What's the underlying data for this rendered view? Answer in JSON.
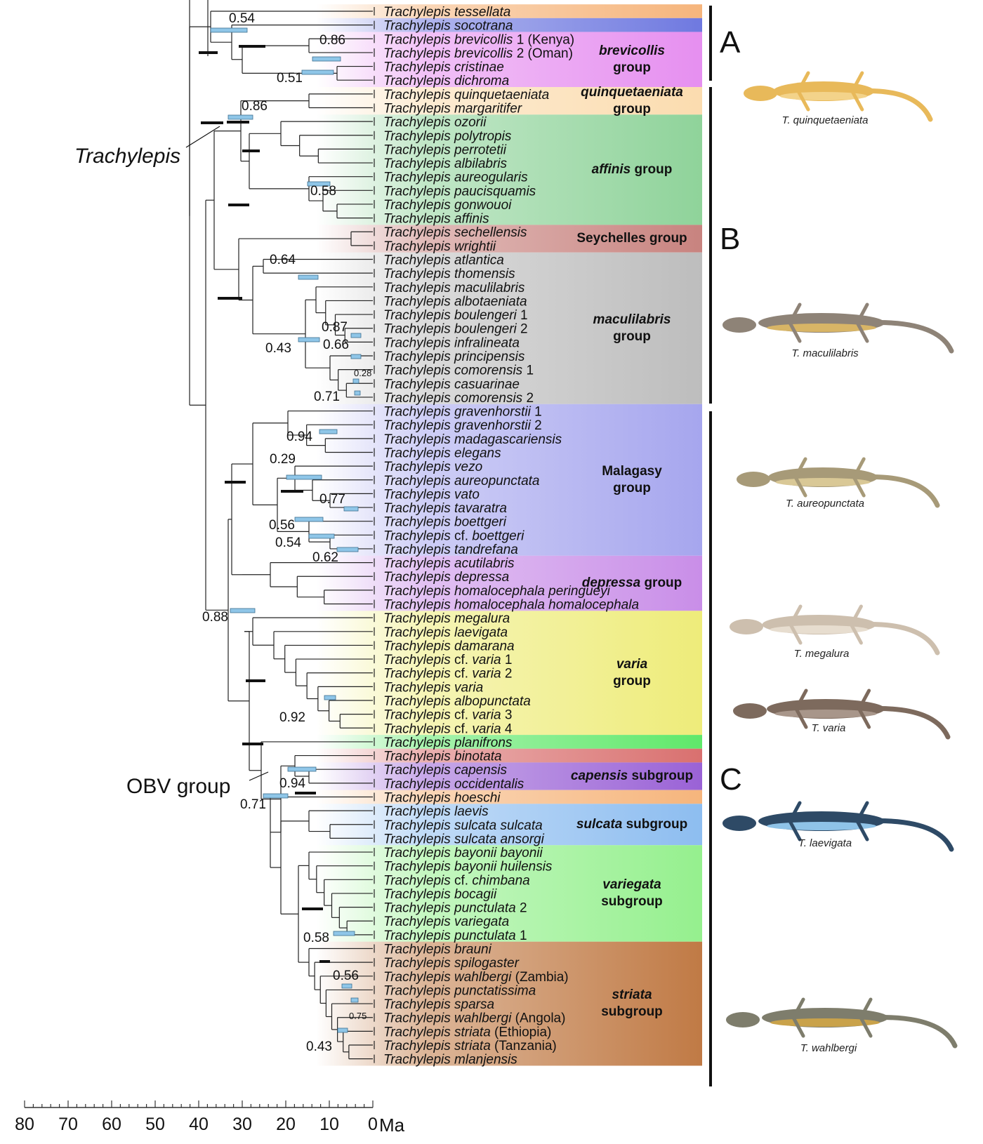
{
  "genus": "Trachylepis",
  "axis": {
    "ticks": [
      80,
      70,
      60,
      50,
      40,
      30,
      20,
      10,
      0
    ],
    "unit": "Ma"
  },
  "labels": {
    "trachylepis": "Trachylepis",
    "obv": "OBV group"
  },
  "clade_letters": [
    "A",
    "B",
    "C"
  ],
  "taxa": [
    {
      "ep": "tessellata",
      "extra": ""
    },
    {
      "ep": "socotrana",
      "extra": ""
    },
    {
      "ep": "brevicollis",
      "extra": "1 (Kenya)"
    },
    {
      "ep": "brevicollis",
      "extra": "2 (Oman)"
    },
    {
      "ep": "cristinae",
      "extra": ""
    },
    {
      "ep": "dichroma",
      "extra": ""
    },
    {
      "ep": "quinquetaeniata",
      "extra": ""
    },
    {
      "ep": "margaritifer",
      "extra": ""
    },
    {
      "ep": "ozorii",
      "extra": ""
    },
    {
      "ep": "polytropis",
      "extra": ""
    },
    {
      "ep": "perrotetii",
      "extra": ""
    },
    {
      "ep": "albilabris",
      "extra": ""
    },
    {
      "ep": "aureogularis",
      "extra": ""
    },
    {
      "ep": "paucisquamis",
      "extra": ""
    },
    {
      "ep": "gonwouoi",
      "extra": ""
    },
    {
      "ep": "affinis",
      "extra": ""
    },
    {
      "ep": "sechellensis",
      "extra": ""
    },
    {
      "ep": "wrightii",
      "extra": ""
    },
    {
      "ep": "atlantica",
      "extra": ""
    },
    {
      "ep": "thomensis",
      "extra": ""
    },
    {
      "ep": "maculilabris",
      "extra": ""
    },
    {
      "ep": "albotaeniata",
      "extra": ""
    },
    {
      "ep": "boulengeri",
      "extra": "1"
    },
    {
      "ep": "boulengeri",
      "extra": "2"
    },
    {
      "ep": "infralineata",
      "extra": ""
    },
    {
      "ep": "principensis",
      "extra": ""
    },
    {
      "ep": "comorensis",
      "extra": "1"
    },
    {
      "ep": "casuarinae",
      "extra": ""
    },
    {
      "ep": "comorensis",
      "extra": "2"
    },
    {
      "ep": "gravenhorstii",
      "extra": "1"
    },
    {
      "ep": "gravenhorstii",
      "extra": "2"
    },
    {
      "ep": "madagascariensis",
      "extra": ""
    },
    {
      "ep": "elegans",
      "extra": ""
    },
    {
      "ep": "vezo",
      "extra": ""
    },
    {
      "ep": "aureopunctata",
      "extra": ""
    },
    {
      "ep": "vato",
      "extra": ""
    },
    {
      "ep": "tavaratra",
      "extra": ""
    },
    {
      "ep": "boettgeri",
      "extra": ""
    },
    {
      "ep": "boettgeri",
      "cf": true,
      "extra": ""
    },
    {
      "ep": "tandrefana",
      "extra": ""
    },
    {
      "ep": "acutilabris",
      "extra": ""
    },
    {
      "ep": "depressa",
      "extra": ""
    },
    {
      "ep": "homalocephala peringueyi",
      "extra": ""
    },
    {
      "ep": "homalocephala homalocephala",
      "extra": ""
    },
    {
      "ep": "megalura",
      "extra": ""
    },
    {
      "ep": "laevigata",
      "extra": ""
    },
    {
      "ep": "damarana",
      "extra": ""
    },
    {
      "ep": "varia",
      "cf": true,
      "extra": "1"
    },
    {
      "ep": "varia",
      "cf": true,
      "extra": "2"
    },
    {
      "ep": "varia",
      "extra": ""
    },
    {
      "ep": "albopunctata",
      "extra": ""
    },
    {
      "ep": "varia",
      "cf": true,
      "extra": "3"
    },
    {
      "ep": "varia",
      "cf": true,
      "extra": "4"
    },
    {
      "ep": "planifrons",
      "extra": ""
    },
    {
      "ep": "binotata",
      "extra": ""
    },
    {
      "ep": "capensis",
      "extra": ""
    },
    {
      "ep": "occidentalis",
      "extra": ""
    },
    {
      "ep": "hoeschi",
      "extra": ""
    },
    {
      "ep": "laevis",
      "extra": ""
    },
    {
      "ep": "sulcata sulcata",
      "extra": ""
    },
    {
      "ep": "sulcata ansorgi",
      "extra": ""
    },
    {
      "ep": "bayonii bayonii",
      "extra": ""
    },
    {
      "ep": "bayonii huilensis",
      "extra": ""
    },
    {
      "ep": "chimbana",
      "cf": true,
      "extra": ""
    },
    {
      "ep": "bocagii",
      "extra": ""
    },
    {
      "ep": "punctulata",
      "extra": "2"
    },
    {
      "ep": "variegata",
      "extra": ""
    },
    {
      "ep": "punctulata",
      "extra": "1"
    },
    {
      "ep": "brauni",
      "extra": ""
    },
    {
      "ep": "spilogaster",
      "extra": ""
    },
    {
      "ep": "wahlbergi",
      "extra": "(Zambia)"
    },
    {
      "ep": "punctatissima",
      "extra": ""
    },
    {
      "ep": "sparsa",
      "extra": ""
    },
    {
      "ep": "wahlbergi",
      "extra": "(Angola)"
    },
    {
      "ep": "striata",
      "extra": "(Ethiopia)"
    },
    {
      "ep": "striata",
      "extra": "(Tanzania)"
    },
    {
      "ep": "mlanjensis",
      "extra": ""
    }
  ],
  "groups": [
    {
      "start": 0,
      "end": 0,
      "color": "#f6b57c",
      "lines": []
    },
    {
      "start": 1,
      "end": 1,
      "color": "#6f79e0",
      "lines": []
    },
    {
      "start": 2,
      "end": 5,
      "color": "#e68ff0",
      "lines": [
        [
          "brevicollis",
          ""
        ],
        [
          "",
          "group"
        ]
      ]
    },
    {
      "start": 6,
      "end": 7,
      "color": "#fbdcaf",
      "lines": [
        [
          "quinquetaeniata",
          ""
        ],
        [
          "",
          "group"
        ]
      ]
    },
    {
      "start": 8,
      "end": 15,
      "color": "#8fd39a",
      "lines": [
        [
          "affinis",
          " group"
        ]
      ]
    },
    {
      "start": 16,
      "end": 17,
      "color": "#c8837f",
      "lines": [
        [
          "",
          "Seychelles group"
        ]
      ]
    },
    {
      "start": 18,
      "end": 28,
      "color": "#bdbdbd",
      "lines": [
        [
          "maculilabris",
          ""
        ],
        [
          "",
          "group"
        ]
      ]
    },
    {
      "start": 29,
      "end": 39,
      "color": "#a6a6ee",
      "lines": [
        [
          "",
          "Malagasy"
        ],
        [
          "",
          "group"
        ]
      ]
    },
    {
      "start": 40,
      "end": 43,
      "color": "#c98ee8",
      "lines": [
        [
          "depressa",
          " group"
        ]
      ]
    },
    {
      "start": 44,
      "end": 52,
      "color": "#eeec7a",
      "lines": [
        [
          "varia",
          ""
        ],
        [
          "",
          "group"
        ]
      ]
    },
    {
      "start": 53,
      "end": 53,
      "color": "#5fe86a",
      "lines": []
    },
    {
      "start": 54,
      "end": 54,
      "color": "#d9706f",
      "lines": []
    },
    {
      "start": 55,
      "end": 56,
      "color": "#9a62d6",
      "lines": [
        [
          "capensis",
          " subgroup"
        ]
      ]
    },
    {
      "start": 57,
      "end": 57,
      "color": "#f6b57c",
      "lines": []
    },
    {
      "start": 58,
      "end": 60,
      "color": "#8dbdf0",
      "lines": [
        [
          "sulcata",
          " subgroup"
        ]
      ]
    },
    {
      "start": 61,
      "end": 67,
      "color": "#95f08e",
      "lines": [
        [
          "variegata",
          ""
        ],
        [
          "",
          "subgroup"
        ]
      ]
    },
    {
      "start": 68,
      "end": 76,
      "color": "#c07a45",
      "lines": [
        [
          "striata",
          ""
        ],
        [
          "",
          "subgroup"
        ]
      ]
    }
  ],
  "node_support": [
    "0.54",
    "0.86",
    "0.51",
    "0.86",
    "0.58",
    "0.64",
    "0.87",
    "0.43",
    "0.66",
    "0.28",
    "0.71",
    "0.94",
    "0.29",
    "0.77",
    "0.56",
    "0.54",
    "0.62",
    "0.88",
    "0.92",
    "0.94",
    "0.71",
    "0.58",
    "0.56",
    "0.75",
    "0.43"
  ],
  "illustrations": [
    {
      "name": "quinquetaeniata",
      "caption": "T. quinquetaeniata",
      "body": "#e8b95a",
      "belly": "#f3d38a"
    },
    {
      "name": "maculilabris",
      "caption": "T. maculilabris",
      "body": "#8e8377",
      "belly": "#d8b566"
    },
    {
      "name": "aureopunctata",
      "caption": "T. aureopunctata",
      "body": "#a79a78",
      "belly": "#d9c896"
    },
    {
      "name": "megalura",
      "caption": "T. megalura",
      "body": "#cdbfae",
      "belly": "#e7ddcf"
    },
    {
      "name": "varia",
      "caption": "T. varia",
      "body": "#7d6a5d",
      "belly": "#a8968a"
    },
    {
      "name": "laevigata",
      "caption": "T. laevigata",
      "body": "#2e4a66",
      "belly": "#8fc3e8"
    },
    {
      "name": "wahlbergi",
      "caption": "T. wahlbergi",
      "body": "#7e7d6c",
      "belly": "#c9a24a"
    }
  ]
}
